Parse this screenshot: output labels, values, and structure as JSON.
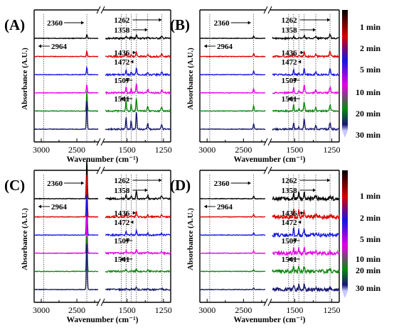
{
  "figure": {
    "panel_labels": [
      "(A)",
      "(B)",
      "(C)",
      "(D)"
    ],
    "xlabel": "Wavenumber (cm⁻¹)",
    "ylabel": "Absorbance (A.U.)",
    "time_labels": [
      "1 min",
      "2 min",
      "5 min",
      "10 min",
      "20 min",
      "30 min"
    ],
    "colorbar_colors": [
      "#000000",
      "#d90000",
      "#1414e6",
      "#e600e6",
      "#0a8a0a",
      "#161670"
    ]
  },
  "chart_data": [
    {
      "type": "line",
      "panel": "(A)",
      "chart_kind": "FTIR spectra",
      "xlabel": "Wavenumber (cm⁻¹)",
      "ylabel": "Absorbance (A.U.)",
      "x_ticks": [
        3000,
        2500,
        1500,
        1250
      ],
      "x_axis_break": true,
      "x_reversed": true,
      "annotations": [
        "2360",
        "2964",
        "1262",
        "1358",
        "1436",
        "1472",
        "1507",
        "1541"
      ],
      "peaks_cm-1": [
        2360,
        2964,
        1262,
        1358,
        1436,
        1472,
        1507,
        1541
      ],
      "series": [
        {
          "name": "1 min",
          "color": "#000000",
          "values": [
            {
              "x": 2360,
              "y": 0.2
            },
            {
              "x": 1507,
              "y": 0.12
            },
            {
              "x": 1472,
              "y": 0.08
            },
            {
              "x": 1436,
              "y": 0.18
            },
            {
              "x": 1358,
              "y": 0.08
            },
            {
              "x": 1262,
              "y": 0.1
            }
          ]
        },
        {
          "name": "2 min",
          "color": "#d90000",
          "values": [
            {
              "x": 2360,
              "y": 0.3
            },
            {
              "x": 1507,
              "y": 0.16
            },
            {
              "x": 1472,
              "y": 0.1
            },
            {
              "x": 1436,
              "y": 0.25
            },
            {
              "x": 1358,
              "y": 0.1
            },
            {
              "x": 1262,
              "y": 0.12
            }
          ]
        },
        {
          "name": "5 min",
          "color": "#1414e6",
          "values": [
            {
              "x": 2360,
              "y": 0.4
            },
            {
              "x": 1507,
              "y": 0.22
            },
            {
              "x": 1472,
              "y": 0.14
            },
            {
              "x": 1436,
              "y": 0.35
            },
            {
              "x": 1358,
              "y": 0.14
            },
            {
              "x": 1262,
              "y": 0.14
            }
          ]
        },
        {
          "name": "10 min",
          "color": "#e600e6",
          "values": [
            {
              "x": 2360,
              "y": 0.45
            },
            {
              "x": 1507,
              "y": 0.34
            },
            {
              "x": 1472,
              "y": 0.24
            },
            {
              "x": 1436,
              "y": 0.48
            },
            {
              "x": 1358,
              "y": 0.2
            },
            {
              "x": 1262,
              "y": 0.16
            }
          ]
        },
        {
          "name": "20 min",
          "color": "#0a8a0a",
          "values": [
            {
              "x": 2360,
              "y": 1.1
            },
            {
              "x": 1507,
              "y": 0.6
            },
            {
              "x": 1472,
              "y": 0.42
            },
            {
              "x": 1436,
              "y": 0.7
            },
            {
              "x": 1358,
              "y": 0.28
            },
            {
              "x": 1262,
              "y": 0.2
            }
          ]
        },
        {
          "name": "30 min",
          "color": "#161670",
          "values": [
            {
              "x": 2360,
              "y": 1.6
            },
            {
              "x": 1507,
              "y": 0.7
            },
            {
              "x": 1472,
              "y": 0.5
            },
            {
              "x": 1436,
              "y": 0.95
            },
            {
              "x": 1358,
              "y": 0.32
            },
            {
              "x": 1262,
              "y": 0.24
            }
          ]
        }
      ]
    },
    {
      "type": "line",
      "panel": "(B)",
      "chart_kind": "FTIR spectra",
      "xlabel": "Wavenumber (cm⁻¹)",
      "ylabel": "Absorbance (A.U.)",
      "x_ticks": [
        3000,
        2500,
        1500,
        1250
      ],
      "x_axis_break": true,
      "x_reversed": true,
      "annotations": [
        "2360",
        "2964",
        "1262",
        "1358",
        "1436",
        "1472",
        "1507",
        "1541"
      ],
      "peaks_cm-1": [
        2360,
        2964,
        1262,
        1358,
        1436,
        1472,
        1507,
        1541
      ],
      "colorbar": true,
      "series": [
        {
          "name": "1 min",
          "color": "#000000",
          "values": [
            {
              "x": 2360,
              "y": 0.12
            },
            {
              "x": 1507,
              "y": 0.14
            },
            {
              "x": 1472,
              "y": 0.06
            },
            {
              "x": 1436,
              "y": 0.16
            },
            {
              "x": 1358,
              "y": 0.12
            },
            {
              "x": 1262,
              "y": 0.22
            }
          ]
        },
        {
          "name": "2 min",
          "color": "#d90000",
          "values": [
            {
              "x": 2360,
              "y": 0.16
            },
            {
              "x": 1507,
              "y": 0.22
            },
            {
              "x": 1472,
              "y": 0.08
            },
            {
              "x": 1436,
              "y": 0.3
            },
            {
              "x": 1358,
              "y": 0.16
            },
            {
              "x": 1262,
              "y": 0.26
            }
          ]
        },
        {
          "name": "5 min",
          "color": "#1414e6",
          "values": [
            {
              "x": 2360,
              "y": 0.2
            },
            {
              "x": 1507,
              "y": 0.26
            },
            {
              "x": 1472,
              "y": 0.1
            },
            {
              "x": 1436,
              "y": 0.36
            },
            {
              "x": 1358,
              "y": 0.18
            },
            {
              "x": 1262,
              "y": 0.28
            }
          ]
        },
        {
          "name": "10 min",
          "color": "#e600e6",
          "values": [
            {
              "x": 2360,
              "y": 0.22
            },
            {
              "x": 1507,
              "y": 0.3
            },
            {
              "x": 1472,
              "y": 0.12
            },
            {
              "x": 1436,
              "y": 0.44
            },
            {
              "x": 1358,
              "y": 0.2
            },
            {
              "x": 1262,
              "y": 0.3
            }
          ]
        },
        {
          "name": "20 min",
          "color": "#0a8a0a",
          "values": [
            {
              "x": 2360,
              "y": 0.28
            },
            {
              "x": 1507,
              "y": 0.36
            },
            {
              "x": 1472,
              "y": 0.14
            },
            {
              "x": 1436,
              "y": 0.52
            },
            {
              "x": 1358,
              "y": 0.22
            },
            {
              "x": 1262,
              "y": 0.32
            }
          ]
        },
        {
          "name": "30 min",
          "color": "#161670",
          "values": [
            {
              "x": 2360,
              "y": 0.3
            },
            {
              "x": 1507,
              "y": 0.4
            },
            {
              "x": 1472,
              "y": 0.16
            },
            {
              "x": 1436,
              "y": 0.58
            },
            {
              "x": 1358,
              "y": 0.24
            },
            {
              "x": 1262,
              "y": 0.34
            }
          ]
        }
      ]
    },
    {
      "type": "line",
      "panel": "(C)",
      "chart_kind": "FTIR spectra",
      "xlabel": "Wavenumber (cm⁻¹)",
      "ylabel": "Absorbance (A.U.)",
      "x_ticks": [
        3000,
        2500,
        1500,
        1250
      ],
      "x_axis_break": true,
      "x_reversed": true,
      "annotations": [
        "2360",
        "2964",
        "1262",
        "1358",
        "1436",
        "1472",
        "1507",
        "1541"
      ],
      "peaks_cm-1": [
        2360,
        2964,
        1262,
        1358,
        1436,
        1472,
        1507,
        1541
      ],
      "series": [
        {
          "name": "1 min",
          "color": "#000000",
          "values": [
            {
              "x": 2360,
              "y": 2.2
            },
            {
              "x": 1507,
              "y": 0.26
            },
            {
              "x": 1472,
              "y": 0.14
            },
            {
              "x": 1436,
              "y": 0.4
            },
            {
              "x": 1358,
              "y": 0.18
            },
            {
              "x": 1262,
              "y": 0.16
            }
          ]
        },
        {
          "name": "2 min",
          "color": "#d90000",
          "values": [
            {
              "x": 2360,
              "y": 2.4
            },
            {
              "x": 1507,
              "y": 0.2
            },
            {
              "x": 1472,
              "y": 0.12
            },
            {
              "x": 1436,
              "y": 0.3
            },
            {
              "x": 1358,
              "y": 0.14
            },
            {
              "x": 1262,
              "y": 0.12
            }
          ]
        },
        {
          "name": "5 min",
          "color": "#1414e6",
          "values": [
            {
              "x": 2360,
              "y": 2.3
            },
            {
              "x": 1507,
              "y": 0.18
            },
            {
              "x": 1472,
              "y": 0.1
            },
            {
              "x": 1436,
              "y": 0.24
            },
            {
              "x": 1358,
              "y": 0.12
            },
            {
              "x": 1262,
              "y": 0.1
            }
          ]
        },
        {
          "name": "10 min",
          "color": "#e600e6",
          "values": [
            {
              "x": 2360,
              "y": 2.1
            },
            {
              "x": 1507,
              "y": 0.14
            },
            {
              "x": 1472,
              "y": 0.08
            },
            {
              "x": 1436,
              "y": 0.18
            },
            {
              "x": 1358,
              "y": 0.1
            },
            {
              "x": 1262,
              "y": 0.08
            }
          ]
        },
        {
          "name": "20 min",
          "color": "#0a8a0a",
          "values": [
            {
              "x": 2360,
              "y": 2.0
            },
            {
              "x": 1507,
              "y": 0.12
            },
            {
              "x": 1472,
              "y": 0.06
            },
            {
              "x": 1436,
              "y": 0.14
            },
            {
              "x": 1358,
              "y": 0.08
            },
            {
              "x": 1262,
              "y": 0.06
            }
          ]
        },
        {
          "name": "30 min",
          "color": "#161670",
          "values": [
            {
              "x": 2360,
              "y": 2.6
            },
            {
              "x": 1507,
              "y": 0.1
            },
            {
              "x": 1472,
              "y": 0.05
            },
            {
              "x": 1436,
              "y": 0.1
            },
            {
              "x": 1358,
              "y": 0.06
            },
            {
              "x": 1262,
              "y": 0.05
            }
          ]
        }
      ]
    },
    {
      "type": "line",
      "panel": "(D)",
      "chart_kind": "FTIR spectra",
      "xlabel": "Wavenumber (cm⁻¹)",
      "ylabel": "Absorbance (A.U.)",
      "x_ticks": [
        3000,
        2500,
        1500,
        1250
      ],
      "x_axis_break": true,
      "x_reversed": true,
      "annotations": [
        "2360",
        "2964",
        "1262",
        "1358",
        "1436",
        "1472",
        "1507",
        "1541"
      ],
      "peaks_cm-1": [
        2360,
        2964,
        1262,
        1358,
        1436,
        1472,
        1507,
        1541
      ],
      "colorbar": true,
      "series": [
        {
          "name": "1 min",
          "color": "#000000",
          "values": [
            {
              "x": 2360,
              "y": 0.16
            },
            {
              "x": 1507,
              "y": 0.4
            },
            {
              "x": 1472,
              "y": 0.34
            },
            {
              "x": 1436,
              "y": 0.36
            },
            {
              "x": 1358,
              "y": 0.18
            },
            {
              "x": 1262,
              "y": 0.14
            }
          ]
        },
        {
          "name": "2 min",
          "color": "#d90000",
          "values": [
            {
              "x": 2360,
              "y": 0.14
            },
            {
              "x": 1507,
              "y": 0.38
            },
            {
              "x": 1472,
              "y": 0.32
            },
            {
              "x": 1436,
              "y": 0.34
            },
            {
              "x": 1358,
              "y": 0.16
            },
            {
              "x": 1262,
              "y": 0.12
            }
          ]
        },
        {
          "name": "5 min",
          "color": "#1414e6",
          "values": [
            {
              "x": 2360,
              "y": 0.12
            },
            {
              "x": 1507,
              "y": 0.36
            },
            {
              "x": 1472,
              "y": 0.3
            },
            {
              "x": 1436,
              "y": 0.32
            },
            {
              "x": 1358,
              "y": 0.14
            },
            {
              "x": 1262,
              "y": 0.1
            }
          ]
        },
        {
          "name": "10 min",
          "color": "#e600e6",
          "values": [
            {
              "x": 2360,
              "y": 0.12
            },
            {
              "x": 1507,
              "y": 0.34
            },
            {
              "x": 1472,
              "y": 0.28
            },
            {
              "x": 1436,
              "y": 0.3
            },
            {
              "x": 1358,
              "y": 0.14
            },
            {
              "x": 1262,
              "y": 0.1
            }
          ]
        },
        {
          "name": "20 min",
          "color": "#0a8a0a",
          "values": [
            {
              "x": 2360,
              "y": 0.1
            },
            {
              "x": 1507,
              "y": 0.32
            },
            {
              "x": 1472,
              "y": 0.26
            },
            {
              "x": 1436,
              "y": 0.28
            },
            {
              "x": 1358,
              "y": 0.12
            },
            {
              "x": 1262,
              "y": 0.08
            }
          ]
        },
        {
          "name": "30 min",
          "color": "#161670",
          "values": [
            {
              "x": 2360,
              "y": 0.1
            },
            {
              "x": 1507,
              "y": 0.34
            },
            {
              "x": 1472,
              "y": 0.28
            },
            {
              "x": 1436,
              "y": 0.3
            },
            {
              "x": 1358,
              "y": 0.12
            },
            {
              "x": 1262,
              "y": 0.08
            }
          ]
        }
      ]
    }
  ]
}
